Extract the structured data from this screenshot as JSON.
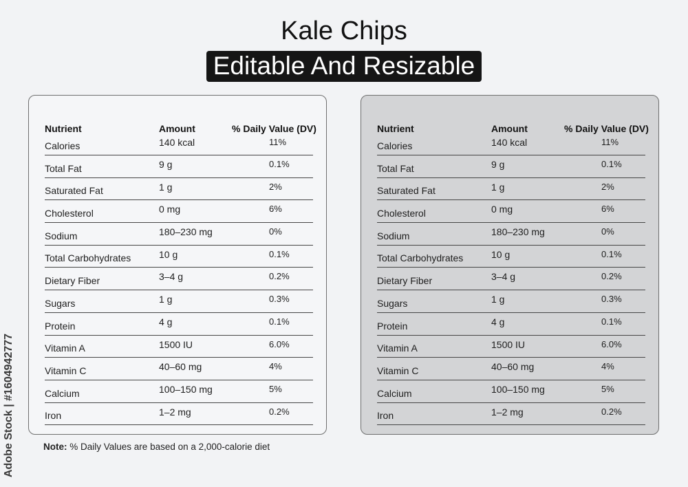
{
  "title": "Kale Chips",
  "subtitle": "Editable And Resizable",
  "headers": {
    "nutrient": "Nutrient",
    "amount": "Amount",
    "dv": "% Daily Value (DV)"
  },
  "rows": [
    {
      "nutrient": "Calories",
      "amount": "140 kcal",
      "dv": "11%"
    },
    {
      "nutrient": "Total Fat",
      "amount": "9 g",
      "dv": "0.1%"
    },
    {
      "nutrient": "Saturated Fat",
      "amount": "1 g",
      "dv": "2%"
    },
    {
      "nutrient": "Cholesterol",
      "amount": "0 mg",
      "dv": "6%"
    },
    {
      "nutrient": "Sodium",
      "amount": "180–230 mg",
      "dv": "0%"
    },
    {
      "nutrient": "Total Carbohydrates",
      "amount": "10 g",
      "dv": "0.1%"
    },
    {
      "nutrient": "Dietary Fiber",
      "amount": "3–4 g",
      "dv": "0.2%"
    },
    {
      "nutrient": "Sugars",
      "amount": "1 g",
      "dv": "0.3%"
    },
    {
      "nutrient": "Protein",
      "amount": "4 g",
      "dv": "0.1%"
    },
    {
      "nutrient": "Vitamin A",
      "amount": "1500 IU",
      "dv": "6.0%"
    },
    {
      "nutrient": "Vitamin C",
      "amount": "40–60 mg",
      "dv": "4%"
    },
    {
      "nutrient": "Calcium",
      "amount": "100–150 mg",
      "dv": "5%"
    },
    {
      "nutrient": "Iron",
      "amount": "1–2 mg",
      "dv": "0.2%"
    }
  ],
  "note": {
    "label": "Note:",
    "text": "% Daily Values are based on a 2,000-calorie diet"
  },
  "watermark": "Adobe Stock | #1604942777",
  "colors": {
    "left_card_bg": "#f5f6f8",
    "right_card_bg": "#d3d4d6",
    "subtitle_bg": "#151515"
  }
}
